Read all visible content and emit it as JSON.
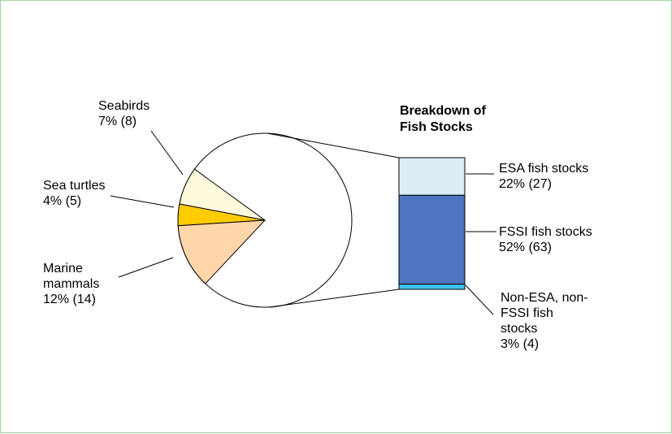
{
  "chart_data": {
    "type": "pie",
    "categories": [
      "Seabirds",
      "Sea turtles",
      "Marine mammals"
    ],
    "values": [
      7,
      4,
      12
    ],
    "value_labels": [
      "7% (8)",
      "4% (5)",
      "12% (14)"
    ],
    "colors": [
      "#fffadc",
      "#ffcc00",
      "#ffd6aa"
    ],
    "breakdown": {
      "type": "stacked-bar",
      "title": "Breakdown of Fish Stocks",
      "categories": [
        "ESA fish stocks",
        "FSSI fish stocks",
        "Non-ESA, non-FSSI fish stocks"
      ],
      "values": [
        22,
        52,
        3
      ],
      "value_labels": [
        "22% (27)",
        "52% (63)",
        "3% (4)"
      ],
      "colors": [
        "#daeef3",
        "#5074c0",
        "#3fc3ef"
      ]
    }
  }
}
